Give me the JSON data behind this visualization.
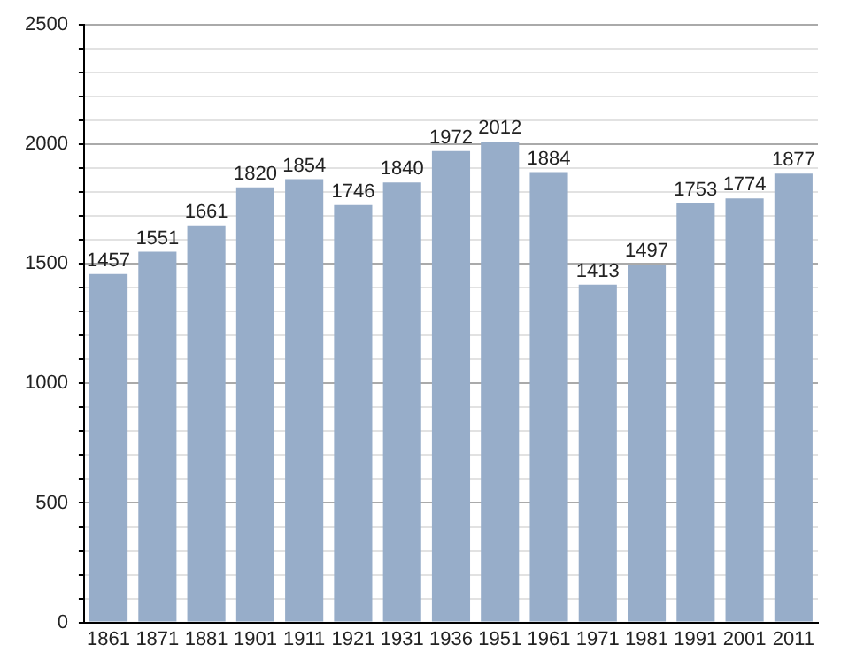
{
  "chart_data": {
    "type": "bar",
    "categories": [
      "1861",
      "1871",
      "1881",
      "1901",
      "1911",
      "1921",
      "1931",
      "1936",
      "1951",
      "1961",
      "1971",
      "1981",
      "1991",
      "2001",
      "2011"
    ],
    "values": [
      1457,
      1551,
      1661,
      1820,
      1854,
      1746,
      1840,
      1972,
      2012,
      1884,
      1413,
      1497,
      1753,
      1774,
      1877
    ],
    "color": "#97adc9",
    "ylim": [
      0,
      2500
    ],
    "yticks": [
      0,
      {
        "value": 100,
        "label": null
      },
      {
        "value": 200,
        "label": null
      },
      {
        "value": 300,
        "label": null
      },
      {
        "value": 400,
        "label": null
      },
      500,
      {
        "value": 600,
        "label": null
      },
      {
        "value": 700,
        "label": null
      },
      {
        "value": 800,
        "label": null
      },
      {
        "value": 900,
        "label": null
      },
      1000,
      {
        "value": 1100,
        "label": null
      },
      {
        "value": 1200,
        "label": null
      },
      {
        "value": 1300,
        "label": null
      },
      {
        "value": 1400,
        "label": null
      },
      1500,
      {
        "value": 1600,
        "label": null
      },
      {
        "value": 1700,
        "label": null
      },
      {
        "value": 1800,
        "label": null
      },
      {
        "value": 1900,
        "label": null
      },
      2000,
      {
        "value": 2100,
        "label": null
      },
      {
        "value": 2200,
        "label": null
      },
      {
        "value": 2300,
        "label": null
      },
      {
        "value": 2400,
        "label": null
      },
      2500
    ],
    "grid": "y",
    "data_labels": true
  }
}
